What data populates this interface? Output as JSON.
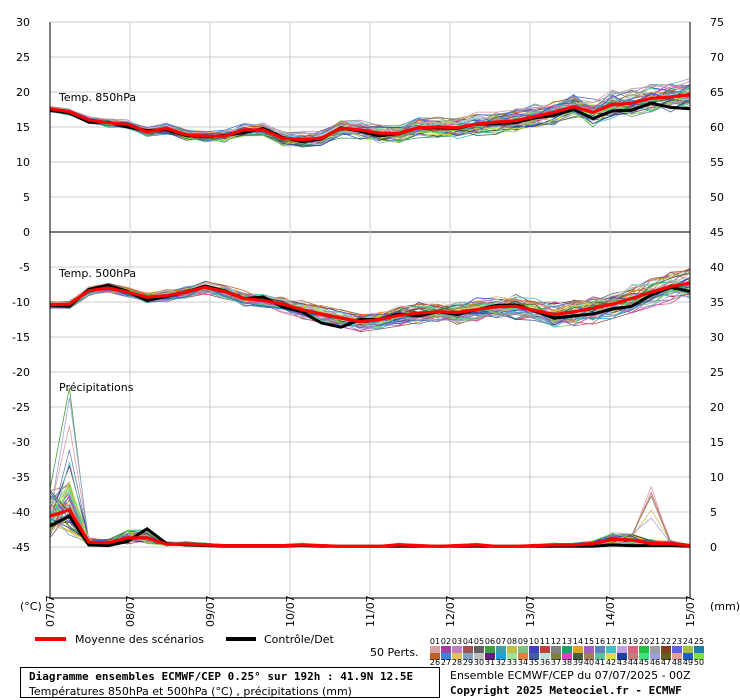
{
  "chart_data": {
    "type": "line",
    "x_ticks": [
      "07/07",
      "08/07",
      "09/07",
      "10/07",
      "11/07",
      "12/07",
      "13/07",
      "14/07",
      "15/07"
    ],
    "x_range_hours": [
      0,
      192
    ],
    "left_axis": {
      "ticks": [
        "30",
        "25",
        "20",
        "15",
        "10",
        "5",
        "0",
        "-5",
        "-10",
        "-15",
        "-20",
        "-25",
        "-30",
        "-35",
        "-40",
        "-45"
      ],
      "unit": "(°C)"
    },
    "right_axis": {
      "ticks": [
        "75",
        "70",
        "65",
        "60",
        "55",
        "50",
        "45",
        "40",
        "35",
        "30",
        "25",
        "20",
        "15",
        "10",
        "5",
        "0"
      ],
      "unit": "(mm)"
    },
    "panels": [
      {
        "label": "Temp. 850hPa",
        "ylim": [
          0,
          30
        ],
        "ensemble_spread": 1.8
      },
      {
        "label": "Temp. 500hPa",
        "ylim": [
          -20,
          0
        ],
        "ensemble_spread": 1.6
      },
      {
        "label": "Précipitations",
        "ylim": [
          0,
          25
        ],
        "ensemble_spread": 0.0
      }
    ],
    "series": [
      {
        "name": "Moyenne des scénarios",
        "color": "#ff0000",
        "t850": [
          17.6,
          17.2,
          16.0,
          15.6,
          15.4,
          14.3,
          14.8,
          13.9,
          13.7,
          13.7,
          14.6,
          14.6,
          13.4,
          13.2,
          13.4,
          14.8,
          14.6,
          14.1,
          14.1,
          14.9,
          15.0,
          14.9,
          15.4,
          15.7,
          15.9,
          16.5,
          17.1,
          17.9,
          17.1,
          18.2,
          18.4,
          19.1,
          19.3,
          19.6
        ],
        "t500": [
          -10.4,
          -10.3,
          -8.4,
          -8.0,
          -8.6,
          -9.3,
          -9.1,
          -8.6,
          -7.9,
          -8.5,
          -9.5,
          -9.8,
          -10.3,
          -11.1,
          -11.7,
          -12.3,
          -12.8,
          -12.5,
          -11.9,
          -11.6,
          -11.4,
          -11.5,
          -11.1,
          -10.7,
          -10.6,
          -11.2,
          -11.8,
          -11.4,
          -10.9,
          -10.3,
          -9.5,
          -8.6,
          -7.8,
          -7.3
        ],
        "precip": [
          4.4,
          5.3,
          0.7,
          0.6,
          1.3,
          1.3,
          0.4,
          0.4,
          0.3,
          0.2,
          0.2,
          0.2,
          0.2,
          0.3,
          0.2,
          0.1,
          0.1,
          0.1,
          0.3,
          0.2,
          0.1,
          0.2,
          0.3,
          0.1,
          0.1,
          0.2,
          0.3,
          0.3,
          0.5,
          1.1,
          1.0,
          0.5,
          0.5,
          0.2
        ]
      },
      {
        "name": "Contrôle/Det",
        "color": "#000000",
        "t850": [
          17.4,
          17.0,
          15.7,
          15.7,
          15.0,
          14.5,
          14.6,
          13.8,
          13.6,
          13.8,
          14.2,
          14.8,
          13.5,
          12.9,
          13.3,
          14.9,
          14.4,
          13.7,
          14.1,
          14.9,
          14.9,
          14.8,
          15.4,
          15.5,
          15.6,
          16.3,
          16.7,
          17.5,
          16.2,
          17.3,
          17.4,
          18.4,
          17.8,
          17.6
        ],
        "t500": [
          -10.5,
          -10.6,
          -8.2,
          -7.6,
          -8.5,
          -9.8,
          -9.2,
          -8.6,
          -7.7,
          -8.4,
          -9.5,
          -9.3,
          -10.7,
          -11.4,
          -13.0,
          -13.6,
          -12.5,
          -12.5,
          -11.7,
          -12.0,
          -11.4,
          -11.8,
          -11.1,
          -10.5,
          -10.4,
          -11.3,
          -12.3,
          -12.0,
          -11.7,
          -11.0,
          -10.6,
          -9.0,
          -7.9,
          -8.5
        ],
        "precip": [
          3.0,
          4.4,
          0.3,
          0.2,
          0.8,
          2.6,
          0.5,
          0.3,
          0.2,
          0.1,
          0.1,
          0.1,
          0.1,
          0.2,
          0.1,
          0.1,
          0.1,
          0.1,
          0.1,
          0.1,
          0.1,
          0.1,
          0.1,
          0.1,
          0.1,
          0.1,
          0.1,
          0.1,
          0.1,
          0.3,
          0.2,
          0.2,
          0.2,
          0.1
        ]
      }
    ],
    "member_colors": [
      "#d9a0a0",
      "#a040a0",
      "#c080c0",
      "#a05050",
      "#606060",
      "#40a040",
      "#40a0a0",
      "#c0c040",
      "#80c080",
      "#4040c0",
      "#c04040",
      "#808080",
      "#20a060",
      "#e0a020",
      "#a060c0",
      "#6080c0",
      "#40c0c0",
      "#c0a0e0",
      "#e06080",
      "#20c040",
      "#a0a0a0",
      "#804020",
      "#6060e0",
      "#a0c040",
      "#2080a0",
      "#c06020",
      "#4080e0",
      "#e0c060",
      "#80a0c0",
      "#c0c0c0",
      "#602080",
      "#20a0e0",
      "#a0e0a0",
      "#e08040",
      "#4060a0",
      "#c0e0e0",
      "#808040",
      "#e040c0",
      "#406040",
      "#a08060",
      "#60c0a0",
      "#e0e040",
      "#2040a0",
      "#c08080",
      "#40e080",
      "#a0a0e0",
      "#606020",
      "#e0a0a0",
      "#2060c0",
      "#80e040"
    ]
  },
  "legend": {
    "mean_label": "Moyenne des scénarios",
    "control_label": "Contrôle/Det",
    "members_label": "50 Perts.",
    "member_numbers_row1": [
      "01",
      "02",
      "03",
      "04",
      "05",
      "06",
      "07",
      "08",
      "09",
      "10",
      "11",
      "12",
      "13",
      "14",
      "15",
      "16",
      "17",
      "18",
      "19",
      "20",
      "21",
      "22",
      "23",
      "24",
      "25"
    ],
    "member_numbers_row2": [
      "26",
      "27",
      "28",
      "29",
      "30",
      "31",
      "32",
      "33",
      "34",
      "35",
      "36",
      "37",
      "38",
      "39",
      "40",
      "41",
      "42",
      "43",
      "44",
      "45",
      "46",
      "47",
      "48",
      "49",
      "50"
    ]
  },
  "footer": {
    "title": "Diagramme ensembles ECMWF/CEP 0.25° sur 192h : 41.9N 12.5E",
    "subtitle": "Températures 850hPa et 500hPa (°C) , précipitations (mm)",
    "run_info": "Ensemble ECMWF/CEP du 07/07/2025 - 00Z",
    "copyright": "Copyright 2025 Meteociel.fr - ECMWF"
  }
}
